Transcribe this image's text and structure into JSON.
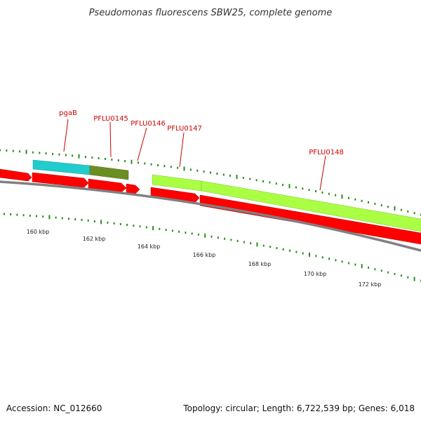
{
  "title": "Pseudomonas fluorescens SBW25, complete genome",
  "footer": {
    "accession": "Accession: NC_012660",
    "summary": "Topology: circular; Length: 6,722,539 bp; Genes: 6,018"
  },
  "colors": {
    "background": "#ffffff",
    "backbone": "#808080",
    "cds": "#ff0000",
    "gene_cyan": "#22cccc",
    "gene_olive": "#6b8e23",
    "gene_lime": "#aaff44",
    "tick": "#2e8b22",
    "gene_label": "#cc0000"
  },
  "genes": [
    {
      "name": "pgaB",
      "color": "cyan"
    },
    {
      "name": "PFLU0145",
      "color": "olive"
    },
    {
      "name": "PFLU0146",
      "color": "red"
    },
    {
      "name": "PFLU0147",
      "color": "lime"
    },
    {
      "name": "PFLU0148",
      "color": "lime"
    }
  ],
  "tick_labels": [
    "160 kbp",
    "162 kbp",
    "164 kbp",
    "166 kbp",
    "168 kbp",
    "170 kbp",
    "172 kbp"
  ]
}
